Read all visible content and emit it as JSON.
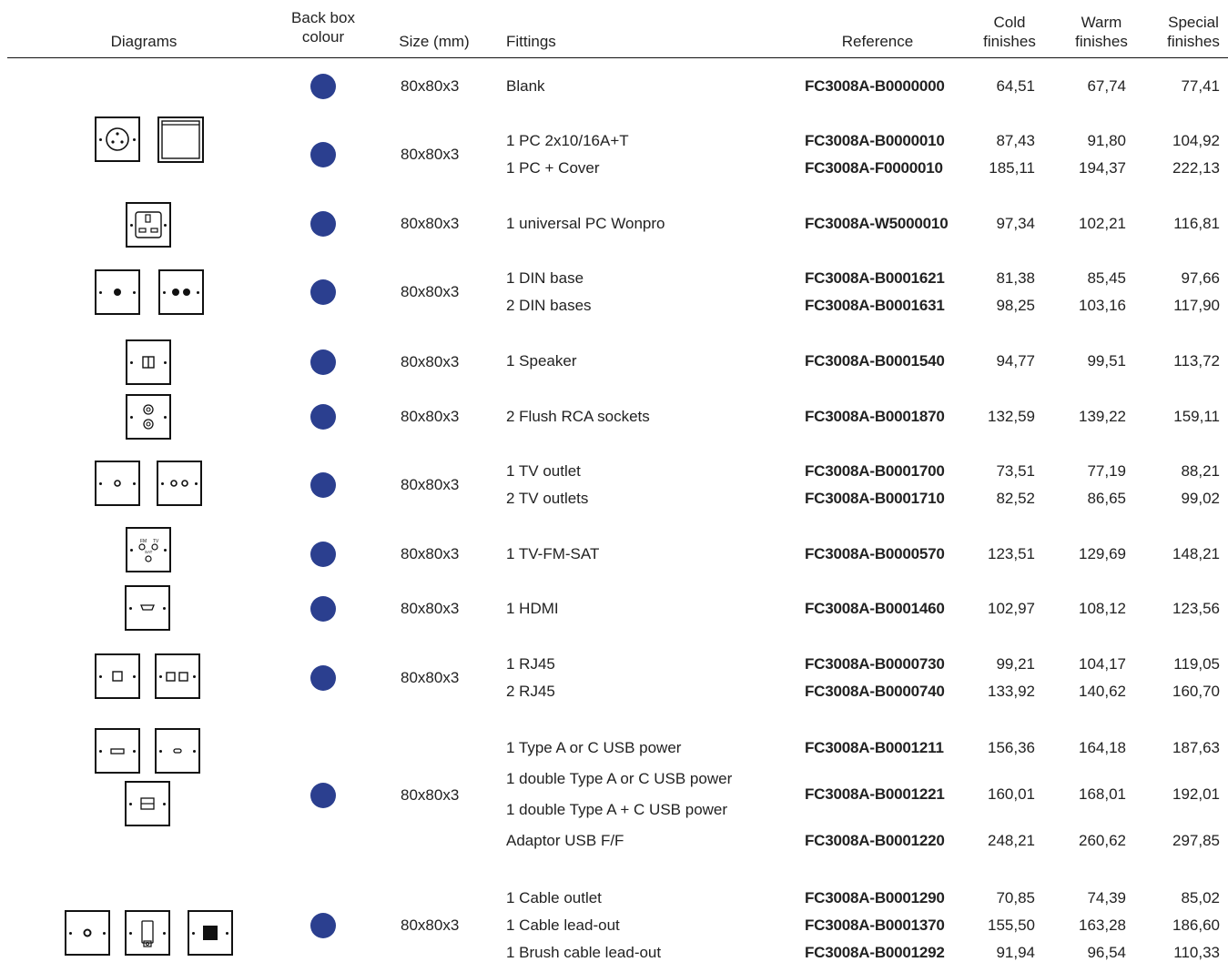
{
  "colors": {
    "back_box_dot": "#2b3f8f"
  },
  "header": {
    "diagrams": "Diagrams",
    "back_box_colour": [
      "Back box",
      "colour"
    ],
    "size": "Size (mm)",
    "fittings": "Fittings",
    "reference": "Reference",
    "cold": [
      "Cold",
      "finishes"
    ],
    "warm": [
      "Warm",
      "finishes"
    ],
    "special": [
      "Special",
      "finishes"
    ]
  },
  "rows": [
    {
      "size": "80x80x3",
      "lines": [
        {
          "fitting": "Blank",
          "reference": "FC3008A-B0000000",
          "cold": "64,51",
          "warm": "67,74",
          "special": "77,41"
        }
      ]
    },
    {
      "size": "80x80x3",
      "lines": [
        {
          "fitting": "1 PC 2x10/16A+T",
          "reference": "FC3008A-B0000010",
          "cold": "87,43",
          "warm": "91,80",
          "special": "104,92"
        },
        {
          "fitting": "1 PC + Cover",
          "reference": "FC3008A-F0000010",
          "cold": "185,11",
          "warm": "194,37",
          "special": "222,13"
        }
      ]
    },
    {
      "size": "80x80x3",
      "lines": [
        {
          "fitting": "1 universal PC Wonpro",
          "reference": "FC3008A-W5000010",
          "cold": "97,34",
          "warm": "102,21",
          "special": "116,81"
        }
      ]
    },
    {
      "size": "80x80x3",
      "lines": [
        {
          "fitting": "1 DIN base",
          "reference": "FC3008A-B0001621",
          "cold": "81,38",
          "warm": "85,45",
          "special": "97,66"
        },
        {
          "fitting": "2 DIN bases",
          "reference": "FC3008A-B0001631",
          "cold": "98,25",
          "warm": "103,16",
          "special": "117,90"
        }
      ]
    },
    {
      "size": "80x80x3",
      "lines": [
        {
          "fitting": "1 Speaker",
          "reference": "FC3008A-B0001540",
          "cold": "94,77",
          "warm": "99,51",
          "special": "113,72"
        }
      ]
    },
    {
      "size": "80x80x3",
      "lines": [
        {
          "fitting": "2 Flush RCA sockets",
          "reference": "FC3008A-B0001870",
          "cold": "132,59",
          "warm": "139,22",
          "special": "159,11"
        }
      ]
    },
    {
      "size": "80x80x3",
      "lines": [
        {
          "fitting": "1 TV outlet",
          "reference": "FC3008A-B0001700",
          "cold": "73,51",
          "warm": "77,19",
          "special": "88,21"
        },
        {
          "fitting": "2 TV outlets",
          "reference": "FC3008A-B0001710",
          "cold": "82,52",
          "warm": "86,65",
          "special": "99,02"
        }
      ]
    },
    {
      "size": "80x80x3",
      "lines": [
        {
          "fitting": "1 TV-FM-SAT",
          "reference": "FC3008A-B0000570",
          "cold": "123,51",
          "warm": "129,69",
          "special": "148,21"
        }
      ]
    },
    {
      "size": "80x80x3",
      "lines": [
        {
          "fitting": "1 HDMI",
          "reference": "FC3008A-B0001460",
          "cold": "102,97",
          "warm": "108,12",
          "special": "123,56"
        }
      ]
    },
    {
      "size": "80x80x3",
      "lines": [
        {
          "fitting": "1 RJ45",
          "reference": "FC3008A-B0000730",
          "cold": "99,21",
          "warm": "104,17",
          "special": "119,05"
        },
        {
          "fitting": "2 RJ45",
          "reference": "FC3008A-B0000740",
          "cold": "133,92",
          "warm": "140,62",
          "special": "160,70"
        }
      ]
    },
    {
      "size": "80x80x3",
      "lines": [
        {
          "fitting": "1 Type A or C USB power",
          "reference": "FC3008A-B0001211",
          "cold": "156,36",
          "warm": "164,18",
          "special": "187,63"
        },
        {
          "fitting": "1 double Type A or C USB power",
          "reference": "",
          "cold": "",
          "warm": "",
          "special": ""
        },
        {
          "fitting": "1 double Type A + C USB power",
          "reference": "FC3008A-B0001221",
          "cold": "160,01",
          "warm": "168,01",
          "special": "192,01"
        },
        {
          "fitting": "Adaptor USB F/F",
          "reference": "FC3008A-B0001220",
          "cold": "248,21",
          "warm": "260,62",
          "special": "297,85"
        }
      ]
    },
    {
      "size": "80x80x3",
      "lines": [
        {
          "fitting": "1 Cable outlet",
          "reference": "FC3008A-B0001290",
          "cold": "70,85",
          "warm": "74,39",
          "special": "85,02"
        },
        {
          "fitting": "1 Cable lead-out",
          "reference": "FC3008A-B0001370",
          "cold": "155,50",
          "warm": "163,28",
          "special": "186,60"
        },
        {
          "fitting": "1 Brush cable lead-out",
          "reference": "FC3008A-B0001292",
          "cold": "91,94",
          "warm": "96,54",
          "special": "110,33"
        }
      ]
    }
  ],
  "diagram_labels": {
    "fm": "FM",
    "tv": "TV",
    "sat": "SAT"
  }
}
